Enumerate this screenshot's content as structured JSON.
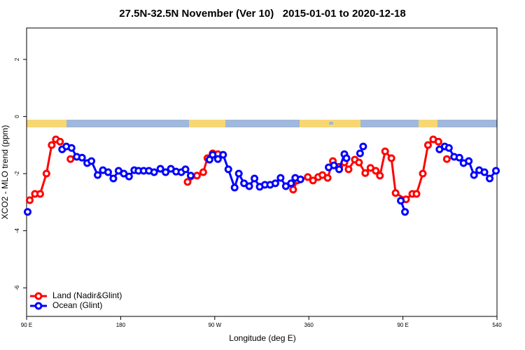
{
  "chart_data": {
    "type": "line",
    "title": "27.5N-32.5N November (Ver 10)   2015-01-01 to 2020-12-18",
    "x_label": "Longitude (deg E)",
    "y_label": "XCO2 - MLO trend (ppm)",
    "xlim": [
      90,
      540
    ],
    "ylim": [
      -7.0,
      3.1
    ],
    "xticks": [
      {
        "value": 90,
        "label": "90 E"
      },
      180,
      {
        "value": 270,
        "label": "90 W"
      },
      360,
      {
        "value": 450,
        "label": "90 E"
      },
      540
    ],
    "yticks": [
      -6,
      -4,
      -2,
      0,
      2
    ],
    "legend": "bottom-left",
    "series": [
      {
        "name": "Land (Nadir&Glint)",
        "color": "#ff0000",
        "x": [
          93,
          98,
          103,
          109,
          114,
          118,
          122,
          null,
          132,
          null,
          244,
          253,
          259,
          263,
          268,
          273,
          null,
          345,
          349,
          359,
          364,
          369,
          373,
          378,
          383,
          389,
          394,
          398,
          404,
          408,
          414,
          419,
          424,
          428,
          433,
          439,
          443,
          453,
          459,
          463,
          469,
          474,
          479,
          484,
          null,
          492
        ],
        "values": [
          -2.93,
          -2.71,
          -2.71,
          -2.0,
          -1.0,
          -0.8,
          -0.88,
          null,
          -1.49,
          null,
          -2.29,
          -2.07,
          -1.95,
          -1.46,
          -1.29,
          -1.32,
          null,
          -2.56,
          -2.24,
          -2.12,
          -2.24,
          -2.12,
          -2.05,
          -2.15,
          -1.56,
          -1.76,
          -1.61,
          -1.85,
          -1.51,
          -1.61,
          -1.98,
          -1.8,
          -1.9,
          -2.07,
          -1.22,
          -1.46,
          -2.68,
          -2.9,
          -2.71,
          -2.71,
          -2.0,
          -1.0,
          -0.8,
          -0.88,
          null,
          -1.49
        ]
      },
      {
        "name": "Ocean (Glint)",
        "color": "#0000ff",
        "x": [
          91,
          null,
          124,
          128,
          133,
          138,
          143,
          148,
          152,
          158,
          163,
          168,
          173,
          178,
          183,
          188,
          193,
          197,
          202,
          207,
          212,
          218,
          223,
          228,
          233,
          238,
          242,
          247,
          null,
          265,
          268,
          273,
          278,
          283,
          289,
          293,
          298,
          303,
          308,
          313,
          318,
          323,
          328,
          333,
          338,
          343,
          347,
          352,
          null,
          379,
          384,
          389,
          394,
          396,
          null,
          409,
          412,
          null,
          448,
          452,
          null,
          485,
          490,
          494,
          499,
          504,
          508,
          513,
          518,
          523,
          528,
          533,
          539
        ],
        "values": [
          -3.34,
          null,
          -1.15,
          -1.05,
          -1.1,
          -1.41,
          -1.44,
          -1.63,
          -1.56,
          -2.05,
          -1.88,
          -1.95,
          -2.17,
          -1.9,
          -2.0,
          -2.1,
          -1.88,
          -1.9,
          -1.9,
          -1.9,
          -1.95,
          -1.83,
          -1.95,
          -1.83,
          -1.93,
          -1.95,
          -1.85,
          -2.07,
          null,
          -1.51,
          -1.34,
          -1.49,
          -1.34,
          -1.85,
          -2.49,
          -2.0,
          -2.34,
          -2.44,
          -2.17,
          -2.46,
          -2.39,
          -2.39,
          -2.34,
          -2.15,
          -2.44,
          -2.34,
          -2.15,
          -2.2,
          null,
          -1.78,
          -1.71,
          -1.85,
          -1.32,
          -1.46,
          null,
          -1.29,
          -1.05,
          null,
          -2.95,
          -3.34,
          null,
          -1.15,
          -1.05,
          -1.1,
          -1.41,
          -1.44,
          -1.63,
          -1.56,
          -2.05,
          -1.88,
          -1.95,
          -2.17,
          -1.9
        ]
      }
    ]
  }
}
